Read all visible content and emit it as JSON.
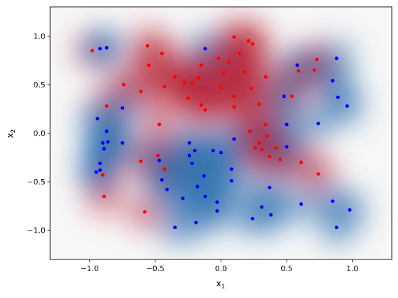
{
  "chart_data": {
    "type": "scatter",
    "title": "",
    "xlabel": "x",
    "xlabel_sub": "1",
    "ylabel": "x",
    "ylabel_sub": "2",
    "xlim": [
      -1.3,
      1.3
    ],
    "ylim": [
      -1.3,
      1.3
    ],
    "xticks": [
      -1.0,
      -0.5,
      0.0,
      0.5,
      1.0
    ],
    "xtick_labels": [
      "−1.0",
      "−0.5",
      "0.0",
      "0.5",
      "1.0"
    ],
    "yticks": [
      -1.0,
      -0.5,
      0.0,
      0.5,
      1.0
    ],
    "ytick_labels": [
      "−1.0",
      "−0.5",
      "0.0",
      "0.5",
      "1.0"
    ],
    "grid": false,
    "legend": "none",
    "background": "decision-surface contour, colormap RdBu (red = class 1, blue = class 0)",
    "colors": {
      "class_1": "#ff0000",
      "class_0": "#0000ff"
    },
    "series": [
      {
        "class": 1,
        "color": "#ff0000",
        "points": [
          [
            -0.98,
            0.85
          ],
          [
            -0.56,
            0.9
          ],
          [
            -0.45,
            0.82
          ],
          [
            -0.55,
            0.7
          ],
          [
            -0.74,
            0.5
          ],
          [
            -0.61,
            0.43
          ],
          [
            -0.43,
            0.48
          ],
          [
            -0.35,
            0.58
          ],
          [
            -0.28,
            0.52
          ],
          [
            -0.22,
            0.52
          ],
          [
            -0.17,
            0.57
          ],
          [
            -0.15,
            0.7
          ],
          [
            -0.25,
            0.36
          ],
          [
            -0.15,
            0.29
          ],
          [
            -0.12,
            0.24
          ],
          [
            -0.02,
            0.77
          ],
          [
            0.02,
            0.62
          ],
          [
            0.06,
            0.73
          ],
          [
            0.1,
            0.99
          ],
          [
            0.14,
            0.82
          ],
          [
            0.21,
            0.95
          ],
          [
            0.24,
            0.92
          ],
          [
            0.18,
            0.63
          ],
          [
            0.0,
            0.47
          ],
          [
            0.1,
            0.38
          ],
          [
            0.1,
            0.27
          ],
          [
            0.23,
            0.46
          ],
          [
            0.29,
            0.3
          ],
          [
            0.34,
            0.58
          ],
          [
            0.59,
            0.64
          ],
          [
            0.71,
            0.65
          ],
          [
            0.73,
            0.76
          ],
          [
            0.54,
            0.38
          ],
          [
            -0.87,
            0.28
          ],
          [
            -0.47,
            0.09
          ],
          [
            0.22,
            0.02
          ],
          [
            0.34,
            0.09
          ],
          [
            0.35,
            -0.03
          ],
          [
            0.29,
            -0.1
          ],
          [
            0.26,
            -0.15
          ],
          [
            0.31,
            -0.17
          ],
          [
            0.37,
            -0.24
          ],
          [
            0.42,
            -0.15
          ],
          [
            0.45,
            -0.27
          ],
          [
            0.61,
            -0.3
          ],
          [
            0.74,
            -0.42
          ],
          [
            -0.48,
            -0.23
          ],
          [
            -0.61,
            -0.29
          ],
          [
            -0.43,
            -0.37
          ],
          [
            -0.9,
            -0.43
          ],
          [
            -0.89,
            -0.65
          ],
          [
            -0.58,
            -0.81
          ]
        ]
      },
      {
        "class": 0,
        "color": "#0000ff",
        "points": [
          [
            -0.92,
            0.87
          ],
          [
            -0.87,
            0.88
          ],
          [
            -0.12,
            0.87
          ],
          [
            0.58,
            0.7
          ],
          [
            0.88,
            0.77
          ],
          [
            0.85,
            0.54
          ],
          [
            0.89,
            0.37
          ],
          [
            0.96,
            0.28
          ],
          [
            0.48,
            0.38
          ],
          [
            -0.75,
            0.26
          ],
          [
            -0.94,
            0.15
          ],
          [
            -0.87,
            0.02
          ],
          [
            -0.9,
            -0.1
          ],
          [
            -0.86,
            -0.09
          ],
          [
            -0.75,
            -0.1
          ],
          [
            -0.89,
            -0.16
          ],
          [
            -0.92,
            -0.31
          ],
          [
            -0.92,
            -0.38
          ],
          [
            -0.95,
            -0.4
          ],
          [
            0.74,
            0.1
          ],
          [
            0.5,
            0.09
          ],
          [
            0.5,
            -0.14
          ],
          [
            0.1,
            -0.06
          ],
          [
            -0.24,
            -0.1
          ],
          [
            -0.2,
            -0.18
          ],
          [
            -0.24,
            -0.23
          ],
          [
            -0.06,
            -0.18
          ],
          [
            0.0,
            -0.2
          ],
          [
            -0.22,
            -0.31
          ],
          [
            -0.13,
            -0.44
          ],
          [
            0.08,
            -0.37
          ],
          [
            -0.47,
            -0.28
          ],
          [
            -0.45,
            -0.48
          ],
          [
            -0.18,
            -0.55
          ],
          [
            -0.41,
            -0.58
          ],
          [
            0.08,
            -0.49
          ],
          [
            -0.12,
            -0.65
          ],
          [
            -0.29,
            -0.67
          ],
          [
            0.37,
            -0.56
          ],
          [
            -0.03,
            -0.71
          ],
          [
            0.31,
            -0.76
          ],
          [
            0.61,
            -0.73
          ],
          [
            0.85,
            -0.7
          ],
          [
            0.98,
            -0.79
          ],
          [
            -0.03,
            -0.8
          ],
          [
            0.38,
            -0.84
          ],
          [
            -0.35,
            -0.97
          ],
          [
            -0.19,
            -0.92
          ],
          [
            0.24,
            -0.88
          ],
          [
            0.88,
            -0.97
          ]
        ]
      }
    ]
  }
}
